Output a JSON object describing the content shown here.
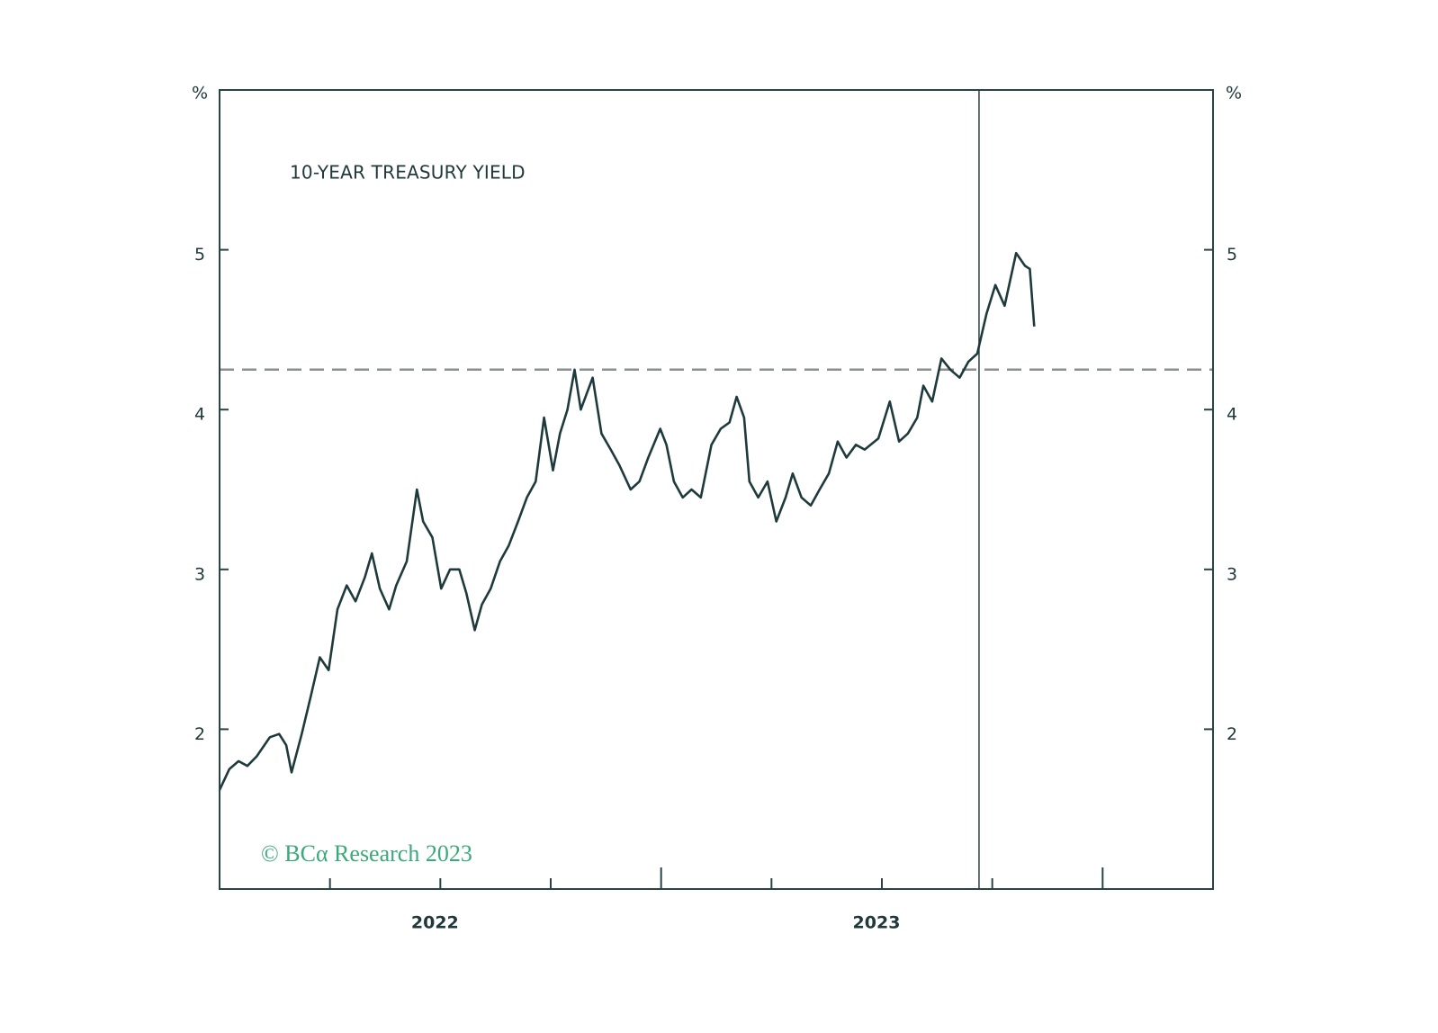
{
  "chart_data": {
    "type": "line",
    "title": "10-YEAR TREASURY YIELD",
    "y_unit_label": "%",
    "y2_unit_label": "%",
    "credit": "© BCα Research 2023",
    "xlim": [
      2022,
      2024.25
    ],
    "xticks": [
      2022.25,
      2022.5,
      2022.75,
      2023,
      2023.25,
      2023.5,
      2023.75,
      2024
    ],
    "xtick_labels": [
      {
        "value": 2022.5,
        "label": "2022"
      },
      {
        "value": 2023.5,
        "label": "2023"
      }
    ],
    "ylim": [
      1,
      6
    ],
    "yticks": [
      2,
      3,
      4,
      5
    ],
    "y2lim": [
      1,
      6
    ],
    "y2ticks": [
      2,
      3,
      4,
      5
    ],
    "reference_lines": {
      "x": 2023.72,
      "y": 4.25
    },
    "x": [
      2022.0,
      2022.022,
      2022.043,
      2022.063,
      2022.084,
      2022.114,
      2022.135,
      2022.151,
      2022.163,
      2022.186,
      2022.206,
      2022.227,
      2022.247,
      2022.267,
      2022.288,
      2022.308,
      2022.329,
      2022.345,
      2022.363,
      2022.384,
      2022.4,
      2022.424,
      2022.447,
      2022.461,
      2022.482,
      2022.502,
      2022.522,
      2022.543,
      2022.559,
      2022.578,
      2022.594,
      2022.614,
      2022.635,
      2022.655,
      2022.676,
      2022.696,
      2022.716,
      2022.735,
      2022.755,
      2022.771,
      2022.788,
      2022.804,
      2022.818,
      2022.845,
      2022.865,
      2022.886,
      2022.906,
      2022.931,
      2022.951,
      2022.971,
      2022.998,
      2023.012,
      2023.029,
      2023.049,
      2023.069,
      2023.09,
      2023.114,
      2023.135,
      2023.155,
      2023.171,
      2023.188,
      2023.2,
      2023.22,
      2023.241,
      2023.261,
      2023.282,
      2023.298,
      2023.318,
      2023.339,
      2023.359,
      2023.38,
      2023.4,
      2023.42,
      2023.441,
      2023.461,
      2023.492,
      2023.518,
      2023.539,
      2023.559,
      2023.58,
      2023.594,
      2023.614,
      2023.635,
      2023.655,
      2023.676,
      2023.696,
      2023.716,
      2023.737,
      2023.757,
      2023.778,
      2023.804,
      2023.824,
      2023.835,
      2023.845
    ],
    "series": [
      {
        "name": "10-Year Treasury Yield",
        "color": "#1f3a3d",
        "values": [
          1.62,
          1.75,
          1.8,
          1.77,
          1.83,
          1.95,
          1.97,
          1.9,
          1.73,
          1.97,
          2.2,
          2.45,
          2.37,
          2.75,
          2.9,
          2.8,
          2.95,
          3.1,
          2.88,
          2.75,
          2.9,
          3.05,
          3.5,
          3.3,
          3.2,
          2.88,
          3.0,
          3.0,
          2.85,
          2.62,
          2.78,
          2.88,
          3.05,
          3.15,
          3.3,
          3.45,
          3.55,
          3.95,
          3.62,
          3.85,
          4.0,
          4.25,
          4.0,
          4.2,
          3.85,
          3.75,
          3.65,
          3.5,
          3.55,
          3.7,
          3.88,
          3.78,
          3.55,
          3.45,
          3.5,
          3.45,
          3.78,
          3.88,
          3.92,
          4.08,
          3.95,
          3.55,
          3.45,
          3.55,
          3.3,
          3.45,
          3.6,
          3.45,
          3.4,
          3.5,
          3.6,
          3.8,
          3.7,
          3.78,
          3.75,
          3.82,
          4.05,
          3.8,
          3.85,
          3.95,
          4.15,
          4.05,
          4.32,
          4.25,
          4.2,
          4.3,
          4.35,
          4.6,
          4.78,
          4.65,
          4.98,
          4.9,
          4.88,
          4.52
        ]
      }
    ]
  }
}
